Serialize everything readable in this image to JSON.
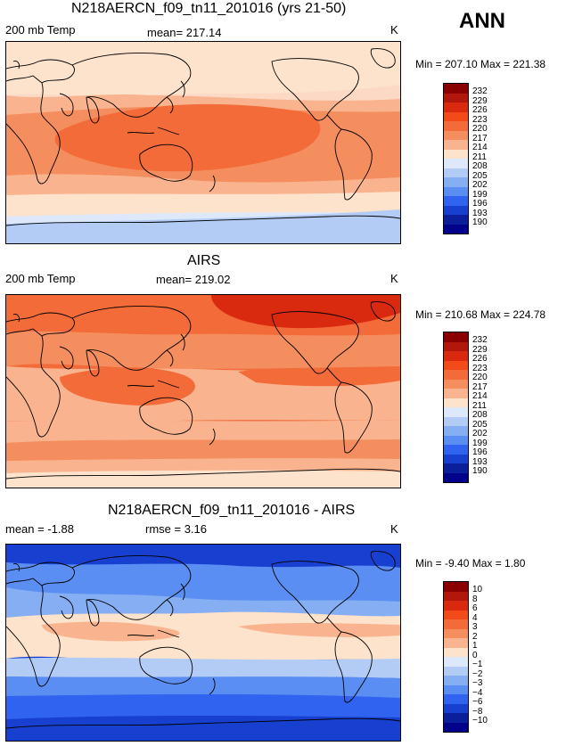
{
  "season": "ANN",
  "panels": [
    {
      "title": "N218AERCN_f09_tn11_201016 (yrs 21-50)",
      "left_label": "200 mb Temp",
      "center_label": "mean= 217.14",
      "units": "K",
      "min_max": "Min = 207.10 Max = 221.38",
      "field_min": 207.1,
      "field_max": 221.38,
      "colorbar": [
        "232",
        "229",
        "226",
        "223",
        "220",
        "217",
        "214",
        "211",
        "208",
        "205",
        "202",
        "199",
        "196",
        "193",
        "190"
      ]
    },
    {
      "title": "AIRS",
      "left_label": "200 mb Temp",
      "center_label": "mean= 219.02",
      "units": "K",
      "min_max": "Min = 210.68 Max = 224.78",
      "field_min": 210.68,
      "field_max": 224.78,
      "colorbar": [
        "232",
        "229",
        "226",
        "223",
        "220",
        "217",
        "214",
        "211",
        "208",
        "205",
        "202",
        "199",
        "196",
        "193",
        "190"
      ]
    },
    {
      "title": "N218AERCN_f09_tn11_201016 - AIRS",
      "left_label": "mean =  -1.88",
      "center_label": "rmse =   3.16",
      "units": "K",
      "min_max": "Min =  -9.40 Max =   1.80",
      "field_min": -9.4,
      "field_max": 1.8,
      "colorbar": [
        "10",
        "8",
        "6",
        "4",
        "3",
        "2",
        "1",
        "0",
        "−1",
        "−2",
        "−3",
        "−4",
        "−6",
        "−8",
        "−10"
      ]
    }
  ],
  "colorbar_colors": [
    "#8b0000",
    "#b3160a",
    "#d9290f",
    "#f24a18",
    "#f26b38",
    "#f58e5e",
    "#f9b48f",
    "#fde2cc",
    "#dde9fb",
    "#b3ccf6",
    "#86aef2",
    "#5a8ef2",
    "#2f63f0",
    "#1840d0",
    "#0a1f99",
    "#00008b"
  ],
  "map_fills": [
    [
      {
        "name": "band-north-pole",
        "color": "#fbd9c5"
      },
      {
        "name": "band-north-mid",
        "color": "#fde2cc"
      },
      {
        "name": "band-north-sub",
        "color": "#f9b48f"
      },
      {
        "name": "band-tropical",
        "color": "#f58e5e"
      },
      {
        "name": "band-warm-pool",
        "color": "#f26b38"
      },
      {
        "name": "band-south-sub",
        "color": "#f9b48f"
      },
      {
        "name": "band-south-mid",
        "color": "#fde2cc"
      },
      {
        "name": "band-south-polar",
        "color": "#dde9fb"
      },
      {
        "name": "band-antarctic",
        "color": "#b3ccf6"
      }
    ],
    [
      {
        "name": "band-north-pole",
        "color": "#f26b38"
      },
      {
        "name": "band-arctic-warm",
        "color": "#d9290f"
      },
      {
        "name": "band-north-mid",
        "color": "#f58e5e"
      },
      {
        "name": "band-tropical",
        "color": "#f9b48f"
      },
      {
        "name": "band-warm-pool",
        "color": "#f26b38"
      },
      {
        "name": "band-south-sub",
        "color": "#f9b48f"
      },
      {
        "name": "band-south-mid",
        "color": "#f58e5e"
      },
      {
        "name": "band-south-polar",
        "color": "#f9b48f"
      },
      {
        "name": "band-antarctic",
        "color": "#fde2cc"
      }
    ],
    [
      {
        "name": "band-north-pole",
        "color": "#1840d0"
      },
      {
        "name": "band-north-mid",
        "color": "#5a8ef2"
      },
      {
        "name": "band-north-sub",
        "color": "#86aef2"
      },
      {
        "name": "band-tropical",
        "color": "#fde2cc"
      },
      {
        "name": "band-warm",
        "color": "#f9b48f"
      },
      {
        "name": "band-south-sub",
        "color": "#b3ccf6"
      },
      {
        "name": "band-south-mid",
        "color": "#5a8ef2"
      },
      {
        "name": "band-south-polar",
        "color": "#2f63f0"
      },
      {
        "name": "band-antarctic",
        "color": "#1840d0"
      }
    ]
  ]
}
